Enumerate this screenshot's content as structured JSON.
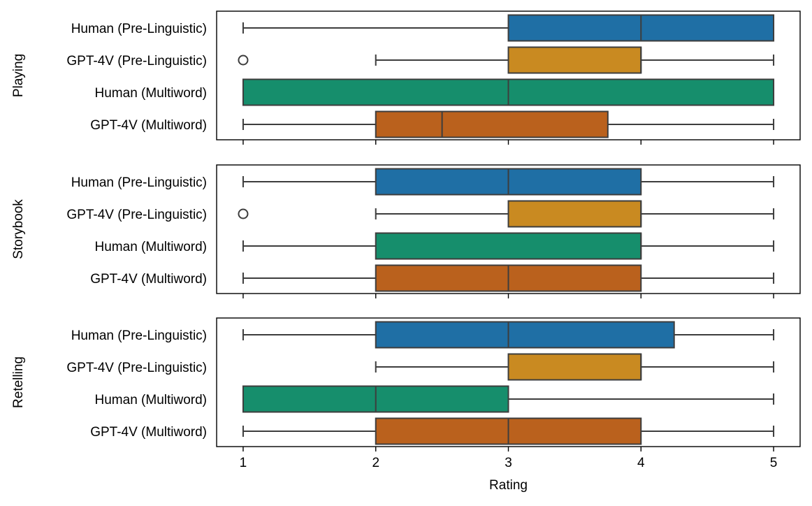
{
  "chart_data": {
    "type": "boxplot",
    "orientation": "horizontal",
    "xlabel": "Rating",
    "xticks": [
      1,
      2,
      3,
      4,
      5
    ],
    "xlim": [
      0.8,
      5.2
    ],
    "categories": [
      "Human (Pre-Linguistic)",
      "GPT-4V (Pre-Linguistic)",
      "Human (Multiword)",
      "GPT-4V (Multiword)"
    ],
    "colors": [
      "#1f6fa5",
      "#c98a21",
      "#168e6c",
      "#ba611d"
    ],
    "panels": [
      {
        "ylabel": "Playing",
        "boxes": [
          {
            "category": "Human (Pre-Linguistic)",
            "whislo": 1,
            "q1": 3,
            "med": 4,
            "q3": 5,
            "whishi": 5,
            "outliers": []
          },
          {
            "category": "GPT-4V (Pre-Linguistic)",
            "whislo": 2,
            "q1": 3,
            "med": 4,
            "q3": 4,
            "whishi": 5,
            "outliers": [
              1
            ]
          },
          {
            "category": "Human (Multiword)",
            "whislo": 1,
            "q1": 1,
            "med": 3,
            "q3": 5,
            "whishi": 5,
            "outliers": []
          },
          {
            "category": "GPT-4V (Multiword)",
            "whislo": 1,
            "q1": 2,
            "med": 2.5,
            "q3": 3.75,
            "whishi": 5,
            "outliers": []
          }
        ]
      },
      {
        "ylabel": "Storybook",
        "boxes": [
          {
            "category": "Human (Pre-Linguistic)",
            "whislo": 1,
            "q1": 2,
            "med": 3,
            "q3": 4,
            "whishi": 5,
            "outliers": []
          },
          {
            "category": "GPT-4V (Pre-Linguistic)",
            "whislo": 2,
            "q1": 3,
            "med": 4,
            "q3": 4,
            "whishi": 5,
            "outliers": [
              1
            ]
          },
          {
            "category": "Human (Multiword)",
            "whislo": 1,
            "q1": 2,
            "med": 4,
            "q3": 4,
            "whishi": 5,
            "outliers": []
          },
          {
            "category": "GPT-4V (Multiword)",
            "whislo": 1,
            "q1": 2,
            "med": 3,
            "q3": 4,
            "whishi": 5,
            "outliers": []
          }
        ]
      },
      {
        "ylabel": "Retelling",
        "boxes": [
          {
            "category": "Human (Pre-Linguistic)",
            "whislo": 1,
            "q1": 2,
            "med": 3,
            "q3": 4.25,
            "whishi": 5,
            "outliers": []
          },
          {
            "category": "GPT-4V (Pre-Linguistic)",
            "whislo": 2,
            "q1": 3,
            "med": 4,
            "q3": 4,
            "whishi": 5,
            "outliers": []
          },
          {
            "category": "Human (Multiword)",
            "whislo": 1,
            "q1": 1,
            "med": 2,
            "q3": 3,
            "whishi": 5,
            "outliers": []
          },
          {
            "category": "GPT-4V (Multiword)",
            "whislo": 1,
            "q1": 2,
            "med": 3,
            "q3": 4,
            "whishi": 5,
            "outliers": []
          }
        ]
      }
    ]
  }
}
